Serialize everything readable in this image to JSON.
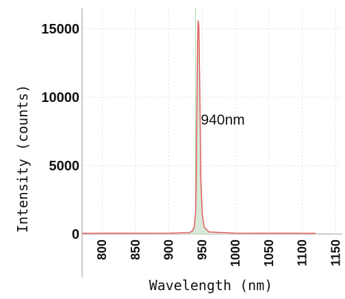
{
  "chart_data": {
    "type": "line",
    "title": "",
    "xlabel": "Wavelength (nm)",
    "ylabel": "Intensity (counts)",
    "xlim": [
      770,
      1160
    ],
    "ylim": [
      0,
      16500
    ],
    "x_ticks": [
      800,
      850,
      900,
      950,
      1000,
      1050,
      1100,
      1150
    ],
    "y_ticks": [
      0,
      5000,
      10000,
      15000
    ],
    "grid": true,
    "series": [
      {
        "color": "#e05a5a",
        "x": [
          770,
          900,
          930,
          935,
          938,
          940,
          941,
          942,
          943,
          944,
          945,
          946,
          947,
          948,
          950,
          953,
          960,
          1000,
          1120
        ],
        "y": [
          50,
          60,
          100,
          200,
          500,
          1500,
          4000,
          9000,
          14000,
          15600,
          15200,
          12000,
          8000,
          4000,
          1500,
          500,
          150,
          60,
          50
        ]
      }
    ],
    "marker_line": {
      "x": 940,
      "color": "#9fd89f"
    },
    "annotations": [
      {
        "text": "940nm",
        "x": 948,
        "y": 8000
      }
    ]
  }
}
